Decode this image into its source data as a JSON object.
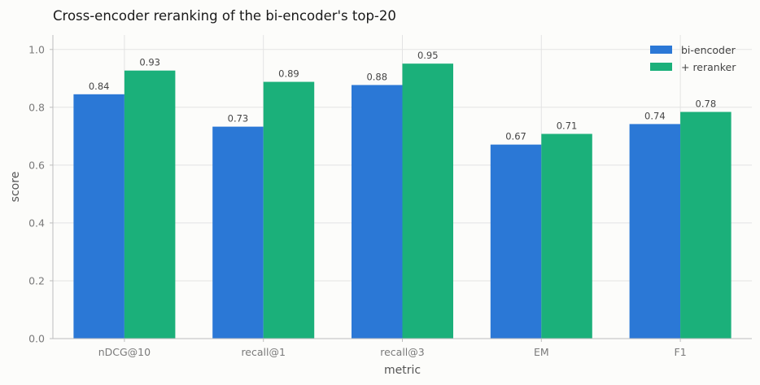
{
  "chart_data": {
    "type": "bar",
    "title": "Cross-encoder reranking of the bi-encoder's top-20",
    "xlabel": "metric",
    "ylabel": "score",
    "categories": [
      "nDCG@10",
      "recall@1",
      "recall@3",
      "EM",
      "F1"
    ],
    "series": [
      {
        "name": "bi-encoder",
        "color": "#2b78d6",
        "values": [
          0.845,
          0.733,
          0.877,
          0.671,
          0.742
        ],
        "labels": [
          "0.84",
          "0.73",
          "0.88",
          "0.67",
          "0.74"
        ]
      },
      {
        "name": "+ reranker",
        "color": "#1bb07a",
        "values": [
          0.927,
          0.888,
          0.951,
          0.708,
          0.784
        ],
        "labels": [
          "0.93",
          "0.89",
          "0.95",
          "0.71",
          "0.78"
        ]
      }
    ],
    "ylim": [
      0,
      1.05
    ],
    "yticks": [
      "0.0",
      "0.2",
      "0.4",
      "0.6",
      "0.8",
      "1.0"
    ],
    "grid": true,
    "legend_position": "top-right"
  }
}
